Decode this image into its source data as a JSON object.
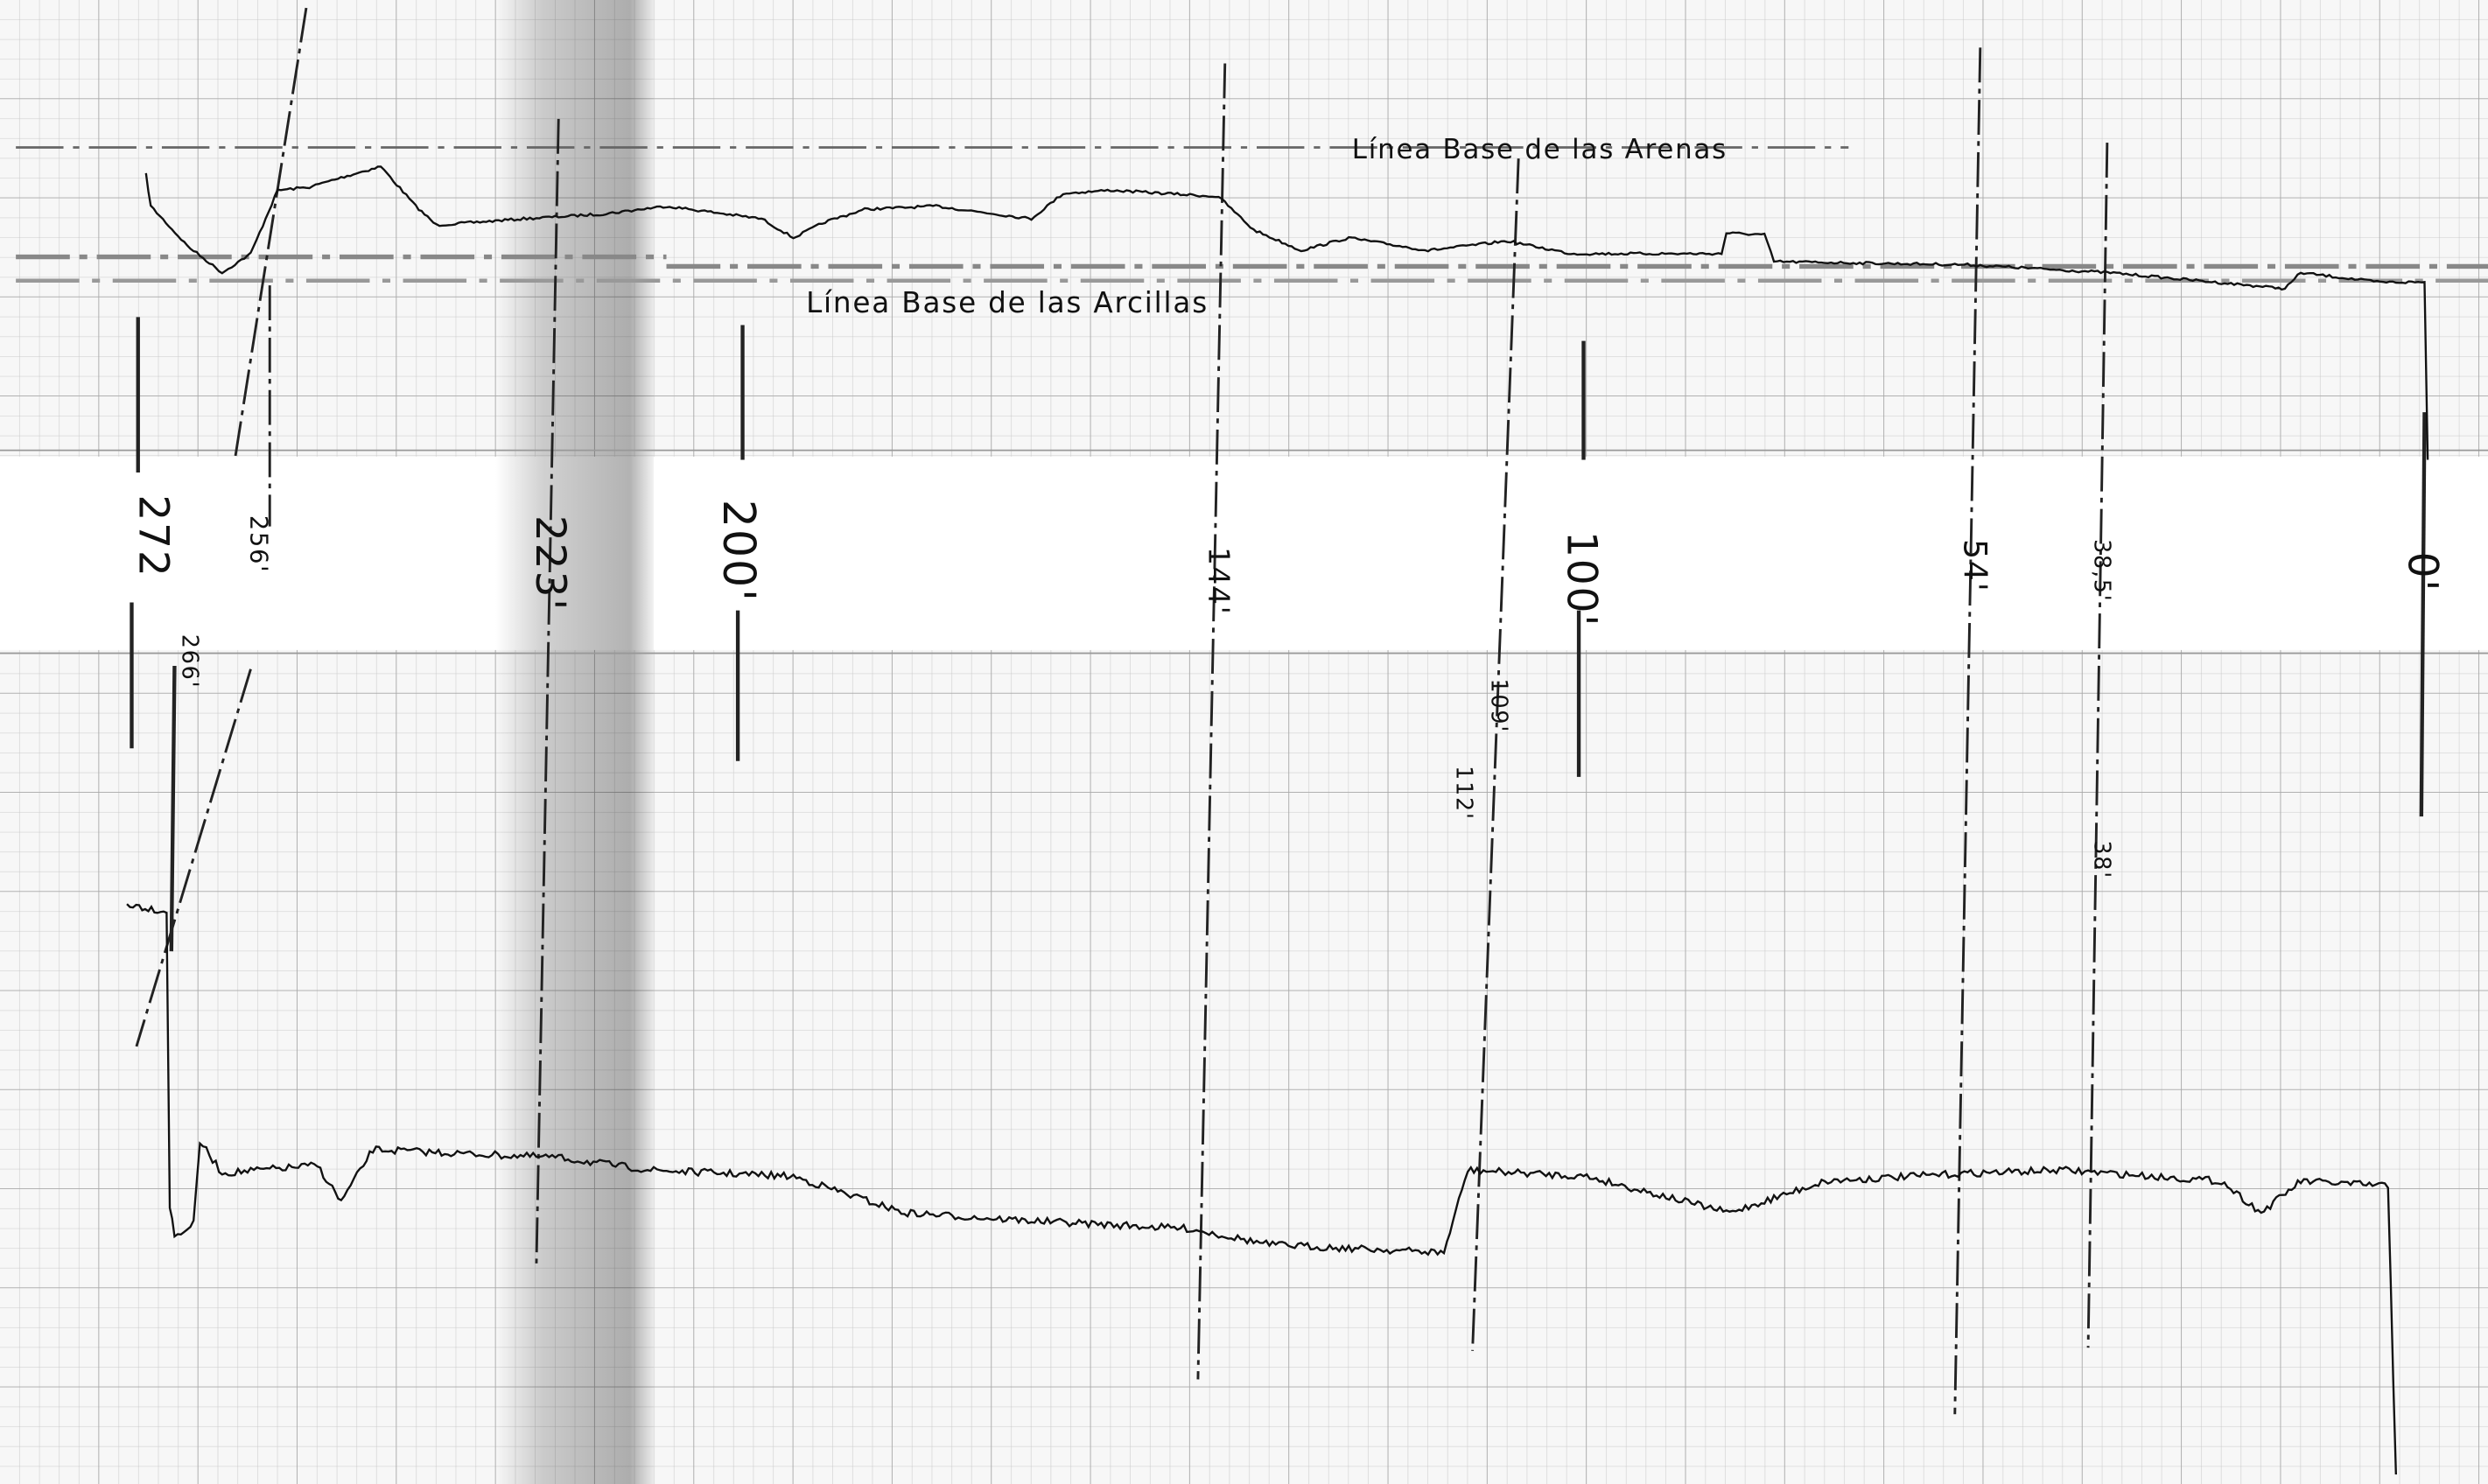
{
  "baselines": {
    "sands": "Línea Base de las Arenas",
    "clays": "Línea Base de las Arcillas"
  },
  "depth_labels": [
    "272",
    "256'",
    "223'",
    "200'",
    "144'",
    "100'",
    "54'",
    "38,5'",
    "0'",
    "266'",
    "109'",
    "112'",
    "38'"
  ]
}
